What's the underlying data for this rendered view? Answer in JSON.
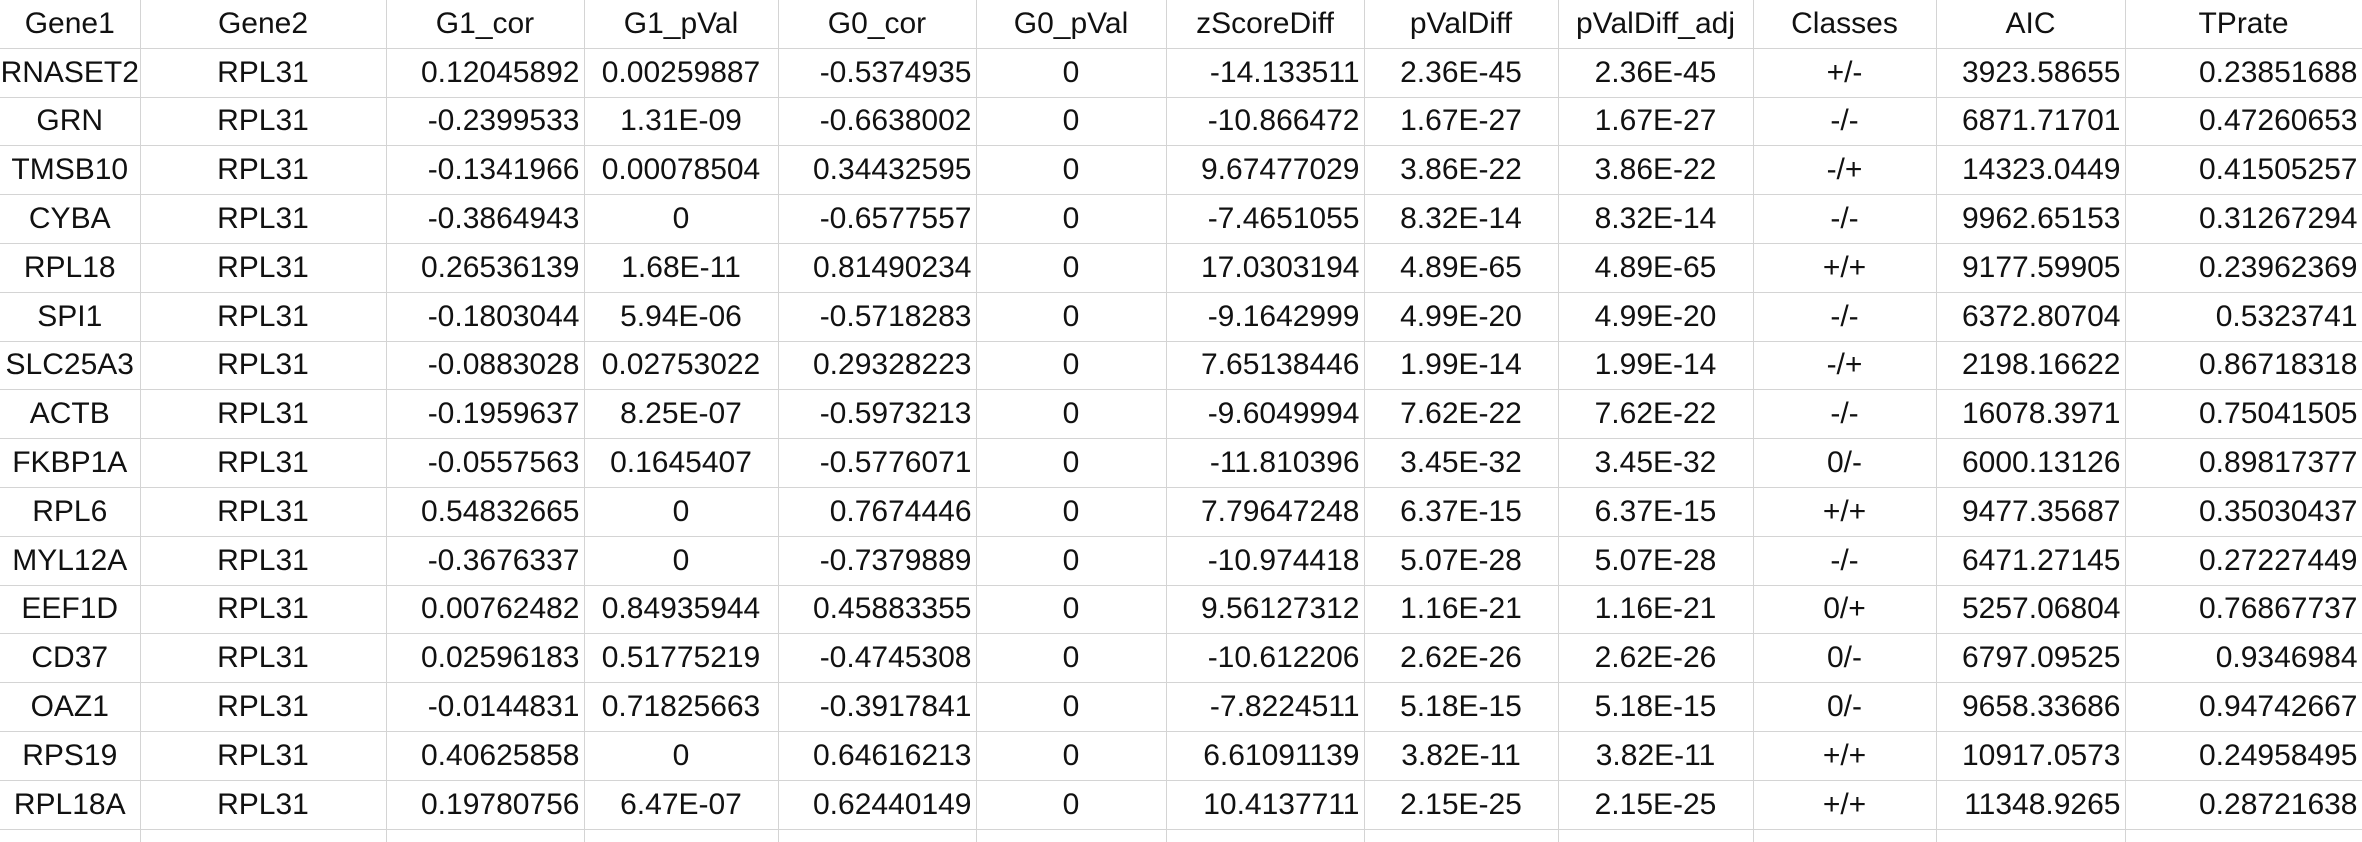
{
  "sheet": {
    "columns": [
      "Gene1",
      "Gene2",
      "G1_cor",
      "G1_pVal",
      "G0_cor",
      "G0_pVal",
      "zScoreDiff",
      "pValDiff",
      "pValDiff_adj",
      "Classes",
      "AIC",
      "TPrate"
    ],
    "alignments": [
      "txt",
      "txt",
      "num",
      "ctr",
      "num",
      "ctr",
      "num",
      "ctr",
      "ctr",
      "ctr",
      "num",
      "num"
    ],
    "rows": [
      [
        "RNASET2",
        "RPL31",
        "0.12045892",
        "0.00259887",
        "-0.5374935",
        "0",
        "-14.133511",
        "2.36E-45",
        "2.36E-45",
        "+/-",
        "3923.58655",
        "0.23851688"
      ],
      [
        "GRN",
        "RPL31",
        "-0.2399533",
        "1.31E-09",
        "-0.6638002",
        "0",
        "-10.866472",
        "1.67E-27",
        "1.67E-27",
        "-/-",
        "6871.71701",
        "0.47260653"
      ],
      [
        "TMSB10",
        "RPL31",
        "-0.1341966",
        "0.00078504",
        "0.34432595",
        "0",
        "9.67477029",
        "3.86E-22",
        "3.86E-22",
        "-/+",
        "14323.0449",
        "0.41505257"
      ],
      [
        "CYBA",
        "RPL31",
        "-0.3864943",
        "0",
        "-0.6577557",
        "0",
        "-7.4651055",
        "8.32E-14",
        "8.32E-14",
        "-/-",
        "9962.65153",
        "0.31267294"
      ],
      [
        "RPL18",
        "RPL31",
        "0.26536139",
        "1.68E-11",
        "0.81490234",
        "0",
        "17.0303194",
        "4.89E-65",
        "4.89E-65",
        "+/+",
        "9177.59905",
        "0.23962369"
      ],
      [
        "SPI1",
        "RPL31",
        "-0.1803044",
        "5.94E-06",
        "-0.5718283",
        "0",
        "-9.1642999",
        "4.99E-20",
        "4.99E-20",
        "-/-",
        "6372.80704",
        "0.5323741"
      ],
      [
        "SLC25A3",
        "RPL31",
        "-0.0883028",
        "0.02753022",
        "0.29328223",
        "0",
        "7.65138446",
        "1.99E-14",
        "1.99E-14",
        "-/+",
        "2198.16622",
        "0.86718318"
      ],
      [
        "ACTB",
        "RPL31",
        "-0.1959637",
        "8.25E-07",
        "-0.5973213",
        "0",
        "-9.6049994",
        "7.62E-22",
        "7.62E-22",
        "-/-",
        "16078.3971",
        "0.75041505"
      ],
      [
        "FKBP1A",
        "RPL31",
        "-0.0557563",
        "0.1645407",
        "-0.5776071",
        "0",
        "-11.810396",
        "3.45E-32",
        "3.45E-32",
        "0/-",
        "6000.13126",
        "0.89817377"
      ],
      [
        "RPL6",
        "RPL31",
        "0.54832665",
        "0",
        "0.7674446",
        "0",
        "7.79647248",
        "6.37E-15",
        "6.37E-15",
        "+/+",
        "9477.35687",
        "0.35030437"
      ],
      [
        "MYL12A",
        "RPL31",
        "-0.3676337",
        "0",
        "-0.7379889",
        "0",
        "-10.974418",
        "5.07E-28",
        "5.07E-28",
        "-/-",
        "6471.27145",
        "0.27227449"
      ],
      [
        "EEF1D",
        "RPL31",
        "0.00762482",
        "0.84935944",
        "0.45883355",
        "0",
        "9.56127312",
        "1.16E-21",
        "1.16E-21",
        "0/+",
        "5257.06804",
        "0.76867737"
      ],
      [
        "CD37",
        "RPL31",
        "0.02596183",
        "0.51775219",
        "-0.4745308",
        "0",
        "-10.612206",
        "2.62E-26",
        "2.62E-26",
        "0/-",
        "6797.09525",
        "0.9346984"
      ],
      [
        "OAZ1",
        "RPL31",
        "-0.0144831",
        "0.71825663",
        "-0.3917841",
        "0",
        "-7.8224511",
        "5.18E-15",
        "5.18E-15",
        "0/-",
        "9658.33686",
        "0.94742667"
      ],
      [
        "RPS19",
        "RPL31",
        "0.40625858",
        "0",
        "0.64616213",
        "0",
        "6.61091139",
        "3.82E-11",
        "3.82E-11",
        "+/+",
        "10917.0573",
        "0.24958495"
      ],
      [
        "RPL18A",
        "RPL31",
        "0.19780756",
        "6.47E-07",
        "0.62440149",
        "0",
        "10.4137711",
        "2.15E-25",
        "2.15E-25",
        "+/+",
        "11348.9265",
        "0.28721638"
      ]
    ]
  }
}
